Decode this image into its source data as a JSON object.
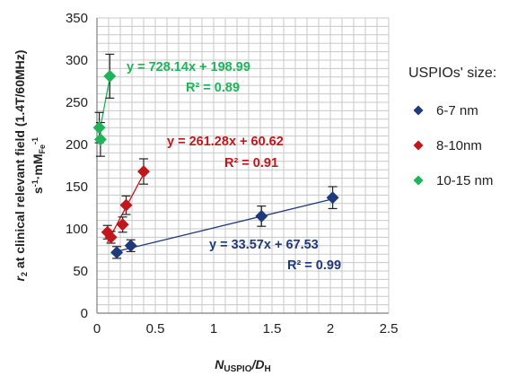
{
  "chart_data": {
    "type": "scatter",
    "xlim": [
      0,
      2.5
    ],
    "ylim": [
      0,
      350
    ],
    "x_ticks": [
      "0",
      "0.5",
      "1",
      "1.5",
      "2",
      "2.5"
    ],
    "y_ticks": [
      "0",
      "50",
      "100",
      "150",
      "200",
      "250",
      "300",
      "350"
    ],
    "grid": true,
    "legend_position": "right",
    "legend_title": "USPIOs' size:",
    "xlabel": {
      "main": "N",
      "sub": "USPIO",
      "rest": "/D",
      "sub2": "H"
    },
    "ylabel": {
      "line1_main": "r",
      "line1_sub": "2",
      "line1_rest": " at clinical relevant field (1.4T/60MHz)",
      "line2_main": "s",
      "line2_sup": "-1",
      "line2_rest": "·mM",
      "line2_sub": "Fe",
      "line2_sup2": "-1"
    },
    "series": [
      {
        "name": "6-7 nm",
        "color": "#1f3a7a",
        "x": [
          0.17,
          0.29,
          1.41,
          2.02
        ],
        "y": [
          72,
          80,
          115,
          137
        ],
        "err": [
          7,
          7,
          12,
          13
        ],
        "fit": {
          "slope": 33.57,
          "intercept": 67.53,
          "x_range": [
            0.17,
            2.02
          ]
        },
        "equation": "y = 33.57x + 67.53",
        "r2": "R² = 0.99"
      },
      {
        "name": "8-10nm",
        "color": "#c0171d",
        "x": [
          0.09,
          0.12,
          0.22,
          0.25,
          0.4
        ],
        "y": [
          96,
          90,
          105,
          128,
          168
        ],
        "err": [
          8,
          7,
          9,
          11,
          15
        ],
        "fit": {
          "slope": 261.28,
          "intercept": 60.62,
          "x_range": [
            0.09,
            0.4
          ]
        },
        "equation": "y = 261.28x + 60.62",
        "r2": "R² = 0.91"
      },
      {
        "name": "10-15 nm",
        "color": "#1fb45a",
        "x": [
          0.02,
          0.03,
          0.11
        ],
        "y": [
          220,
          206,
          281
        ],
        "err": [
          18,
          20,
          26
        ],
        "fit": {
          "slope": 728.14,
          "intercept": 198.99,
          "x_range": [
            0.02,
            0.11
          ]
        },
        "equation": "y = 728.14x + 198.99",
        "r2": "R² = 0.89"
      }
    ]
  }
}
